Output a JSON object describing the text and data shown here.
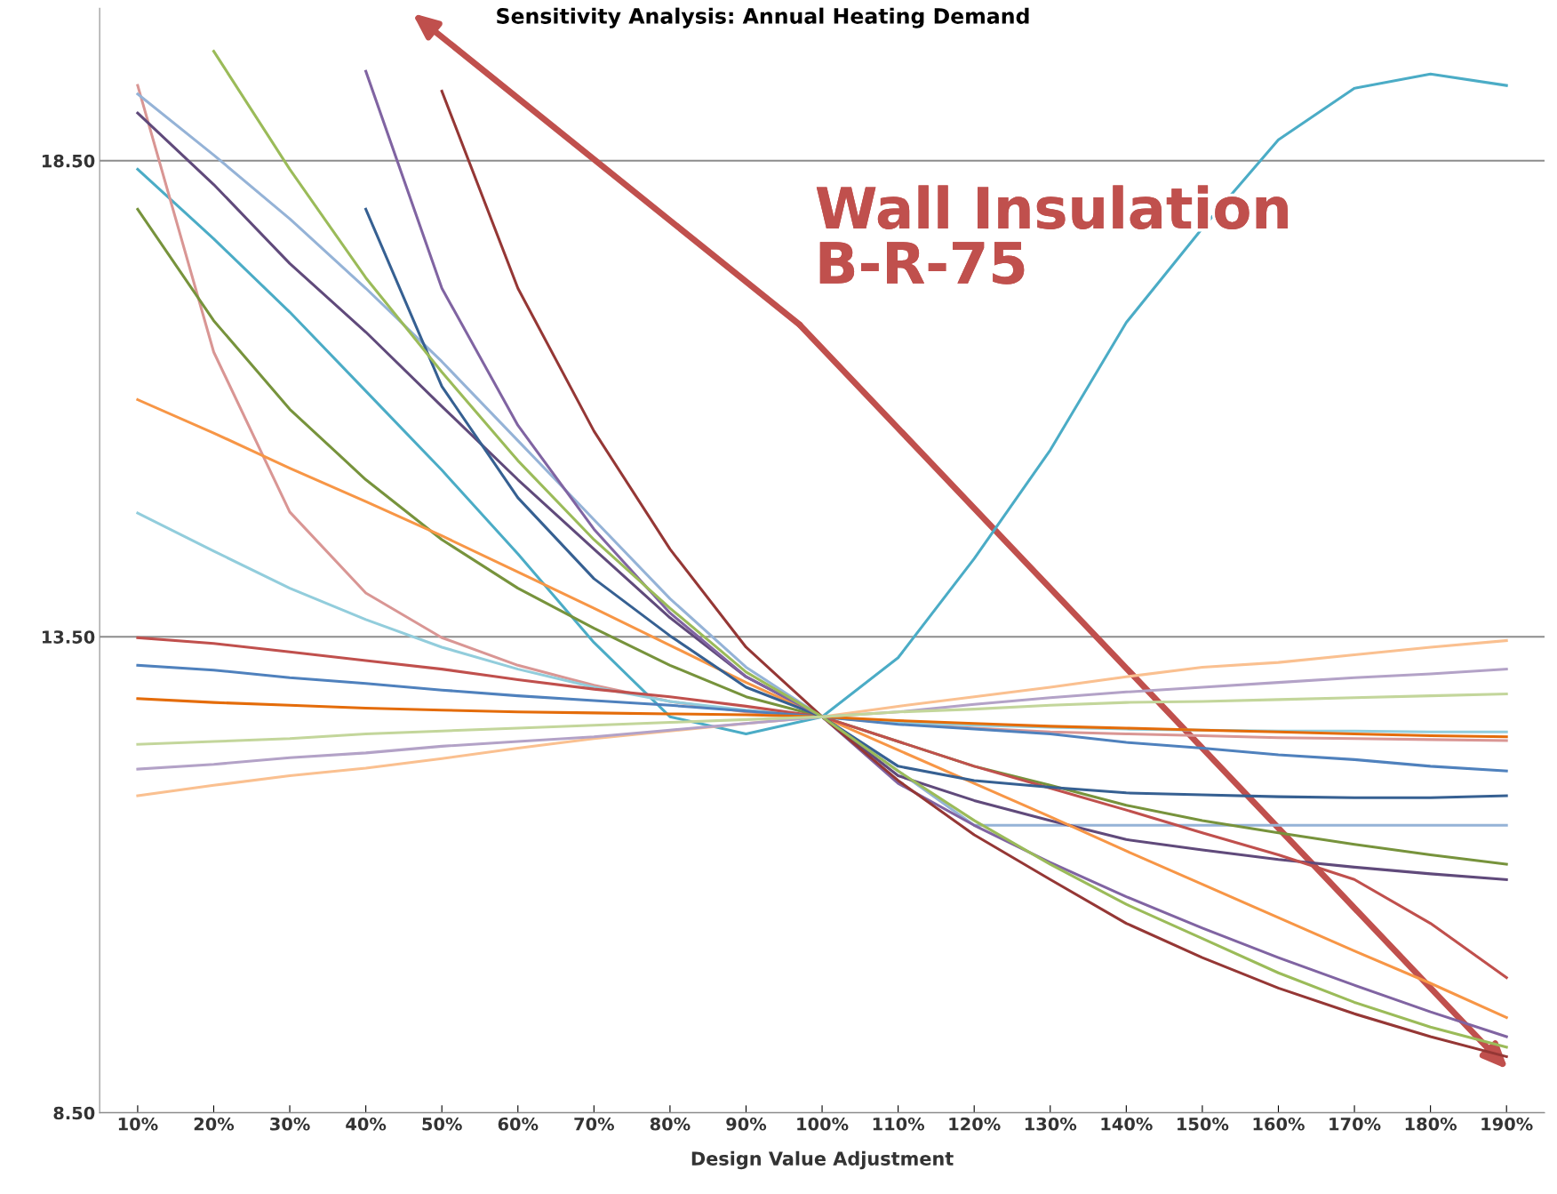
{
  "chart_data": {
    "type": "line",
    "title": "Sensitivity Analysis: Annual Heating Demand",
    "xlabel": "Design Value Adjustment",
    "categories": [
      "10%",
      "20%",
      "30%",
      "40%",
      "50%",
      "60%",
      "70%",
      "80%",
      "90%",
      "100%",
      "110%",
      "120%",
      "130%",
      "140%",
      "150%",
      "160%",
      "170%",
      "180%",
      "190%"
    ],
    "ylim": [
      8.5,
      20.1
    ],
    "yticks": [
      {
        "value": 8.5,
        "label": "8.50"
      },
      {
        "value": 13.5,
        "label": "13.50"
      },
      {
        "value": 18.5,
        "label": "18.50"
      }
    ],
    "grid": "y",
    "legend": false,
    "marker": "none",
    "line_style": "solid",
    "annotations": [
      "Wall Insulation\nB-R-75"
    ],
    "series": [
      {
        "color": "#4bacc6",
        "values": [
          18.41,
          17.68,
          16.91,
          16.08,
          15.25,
          14.37,
          13.44,
          12.66,
          12.48,
          12.66,
          13.28,
          14.32,
          15.46,
          16.8,
          17.79,
          18.72,
          19.26,
          19.41,
          19.29
        ]
      },
      {
        "color": "#d99694",
        "values": [
          19.29,
          16.49,
          14.81,
          13.96,
          13.49,
          13.2,
          12.99,
          12.82,
          12.71,
          12.66,
          12.59,
          12.54,
          12.5,
          12.48,
          12.46,
          12.44,
          12.43,
          12.42,
          12.41
        ]
      },
      {
        "color": "#95b3d7",
        "values": [
          19.2,
          18.56,
          17.89,
          17.16,
          16.39,
          15.56,
          14.73,
          13.9,
          13.18,
          12.66,
          12.09,
          11.52,
          11.52,
          11.52,
          11.52,
          11.52,
          11.52,
          11.52,
          11.52
        ]
      },
      {
        "color": "#604a7b",
        "values": [
          19.0,
          18.25,
          17.42,
          16.7,
          15.92,
          15.15,
          14.42,
          13.7,
          13.08,
          12.66,
          12.04,
          11.78,
          11.57,
          11.37,
          11.26,
          11.16,
          11.08,
          11.01,
          10.95
        ]
      },
      {
        "color": "#77933c",
        "values": [
          17.99,
          16.82,
          15.89,
          15.15,
          14.52,
          14.01,
          13.59,
          13.2,
          12.87,
          12.66,
          12.4,
          12.14,
          11.94,
          11.73,
          11.57,
          11.44,
          11.32,
          11.21,
          11.11
        ]
      },
      {
        "color": "#f79646",
        "values": [
          15.99,
          15.64,
          15.27,
          14.92,
          14.56,
          14.18,
          13.8,
          13.41,
          13.02,
          12.66,
          12.31,
          11.96,
          11.61,
          11.25,
          10.9,
          10.55,
          10.2,
          9.86,
          9.5
        ]
      },
      {
        "color": "#92cddc",
        "values": [
          14.8,
          14.4,
          14.01,
          13.68,
          13.39,
          13.16,
          12.97,
          12.82,
          12.73,
          12.66,
          12.6,
          12.57,
          12.55,
          12.53,
          12.52,
          12.51,
          12.51,
          12.5,
          12.5
        ]
      },
      {
        "color": "#c0504d",
        "values": [
          13.49,
          13.43,
          13.34,
          13.25,
          13.16,
          13.05,
          12.95,
          12.87,
          12.77,
          12.66,
          12.4,
          12.14,
          11.91,
          11.68,
          11.44,
          11.21,
          10.95,
          10.49,
          9.92
        ]
      },
      {
        "color": "#4f81bd",
        "values": [
          13.2,
          13.15,
          13.07,
          13.01,
          12.94,
          12.88,
          12.83,
          12.78,
          12.72,
          12.66,
          12.58,
          12.53,
          12.48,
          12.39,
          12.33,
          12.26,
          12.21,
          12.14,
          12.09
        ]
      },
      {
        "color": "#e46c0a",
        "values": [
          12.85,
          12.81,
          12.78,
          12.75,
          12.73,
          12.71,
          12.7,
          12.69,
          12.68,
          12.66,
          12.62,
          12.59,
          12.56,
          12.54,
          12.52,
          12.5,
          12.48,
          12.46,
          12.45
        ]
      },
      {
        "color": "#366092",
        "values": [
          null,
          null,
          null,
          17.99,
          16.13,
          14.96,
          14.11,
          13.51,
          12.97,
          12.66,
          12.14,
          11.99,
          11.92,
          11.86,
          11.84,
          11.82,
          11.81,
          11.81,
          11.83
        ]
      },
      {
        "color": "#8064a2",
        "values": [
          null,
          null,
          null,
          19.44,
          17.16,
          15.72,
          14.63,
          13.75,
          13.08,
          12.66,
          11.96,
          11.52,
          11.13,
          10.77,
          10.44,
          10.13,
          9.84,
          9.56,
          9.3
        ]
      },
      {
        "color": "#953735",
        "values": [
          null,
          null,
          null,
          null,
          19.23,
          17.16,
          15.66,
          14.42,
          13.39,
          12.66,
          11.99,
          11.42,
          10.95,
          10.49,
          10.13,
          9.81,
          9.54,
          9.3,
          9.09
        ]
      },
      {
        "color": "#9bbb59",
        "values": [
          null,
          19.65,
          18.41,
          17.27,
          16.28,
          15.35,
          14.52,
          13.8,
          13.13,
          12.66,
          12.09,
          11.57,
          11.11,
          10.69,
          10.33,
          9.97,
          9.66,
          9.4,
          9.19
        ]
      },
      {
        "color": "#fac090",
        "values": [
          11.83,
          11.94,
          12.04,
          12.12,
          12.22,
          12.33,
          12.43,
          12.51,
          12.59,
          12.66,
          12.77,
          12.87,
          12.97,
          13.08,
          13.18,
          13.23,
          13.31,
          13.39,
          13.46
        ]
      },
      {
        "color": "#b3a2c7",
        "values": [
          12.11,
          12.16,
          12.23,
          12.28,
          12.35,
          12.4,
          12.45,
          12.52,
          12.59,
          12.66,
          12.71,
          12.79,
          12.86,
          12.92,
          12.97,
          13.02,
          13.07,
          13.11,
          13.16
        ]
      },
      {
        "color": "#c3d69b",
        "values": [
          12.37,
          12.4,
          12.43,
          12.48,
          12.51,
          12.54,
          12.57,
          12.6,
          12.63,
          12.66,
          12.71,
          12.74,
          12.78,
          12.81,
          12.82,
          12.84,
          12.86,
          12.88,
          12.9
        ]
      }
    ]
  }
}
